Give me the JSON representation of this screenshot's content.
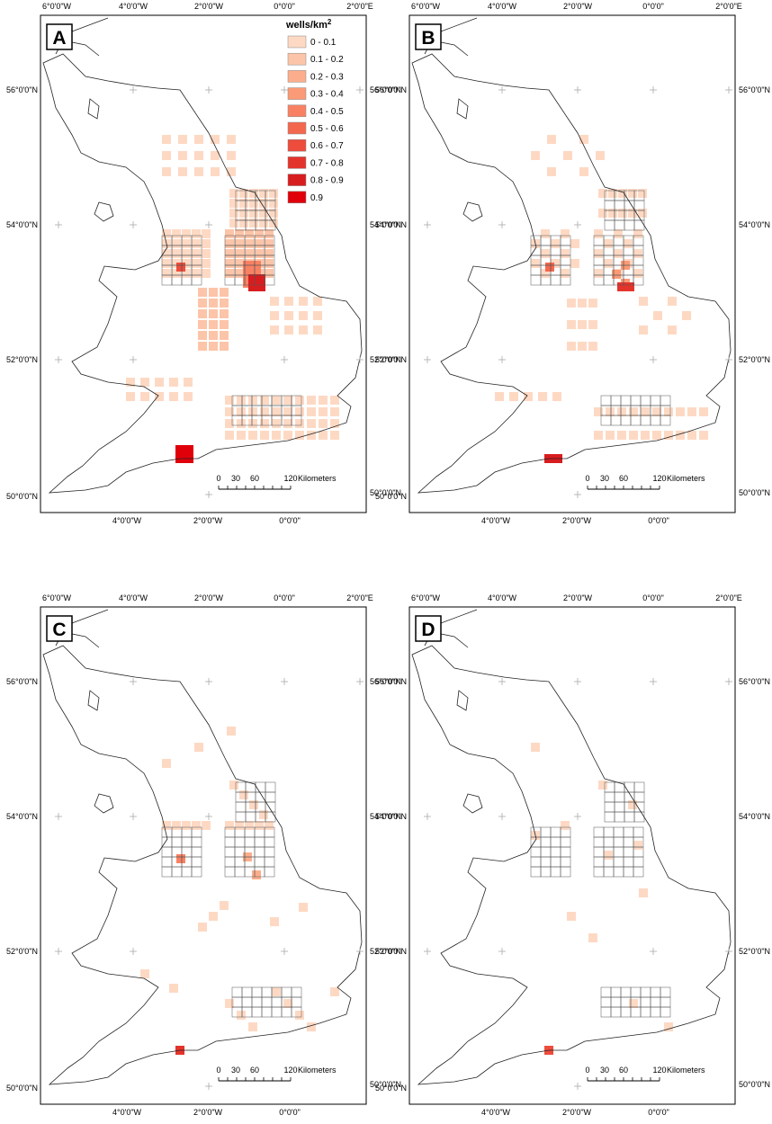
{
  "panels": [
    {
      "label": "A"
    },
    {
      "label": "B"
    },
    {
      "label": "C"
    },
    {
      "label": "D"
    }
  ],
  "axes": {
    "top": [
      "6°0'0\"W",
      "4°0'0\"W",
      "2°0'0\"W",
      "0°0'0\"",
      "2°0'0\"E"
    ],
    "bottom": [
      "4°0'0\"W",
      "2°0'0\"W",
      "0°0'0\""
    ],
    "left": [
      "56°0'0\"N",
      "54°0'0\"N",
      "52°0'0\"N",
      "50°0'0\"N"
    ],
    "right": [
      "56°0'0\"N",
      "54°0'0\"N",
      "52°0'0\"N",
      "50°0'0\"N"
    ]
  },
  "legend": {
    "title": "wells/km",
    "title_sup": "2",
    "items": [
      {
        "label": "0 - 0.1",
        "color": "#fdd9c4"
      },
      {
        "label": "0.1 - 0.2",
        "color": "#fcc4a8"
      },
      {
        "label": "0.2 - 0.3",
        "color": "#fcae8c"
      },
      {
        "label": "0.3 - 0.4",
        "color": "#fb9a76"
      },
      {
        "label": "0.4 - 0.5",
        "color": "#f98163"
      },
      {
        "label": "0.5 - 0.6",
        "color": "#f4674f"
      },
      {
        "label": "0.6 - 0.7",
        "color": "#ee4c3c"
      },
      {
        "label": "0.7 - 0.8",
        "color": "#e3342c"
      },
      {
        "label": "0.8 - 0.9",
        "color": "#d81d1f"
      },
      {
        "label": "0.9",
        "color": "#e0000a"
      }
    ]
  },
  "scale_bar": {
    "ticks": [
      "0",
      "30",
      "60",
      "120"
    ],
    "unit": "Kilometers"
  }
}
